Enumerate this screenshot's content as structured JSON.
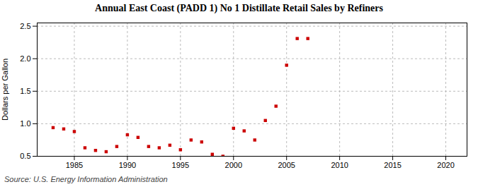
{
  "chart_data": {
    "type": "scatter",
    "title": "Annual East Coast (PADD 1) No 1 Distillate Retail Sales by Refiners",
    "ylabel": "Dollars per Gallon",
    "source": "Source: U.S. Energy Information Administration",
    "x": [
      1983,
      1984,
      1985,
      1986,
      1987,
      1988,
      1989,
      1990,
      1991,
      1992,
      1993,
      1994,
      1995,
      1996,
      1997,
      1998,
      1999,
      2000,
      2001,
      2002,
      2003,
      2004,
      2005,
      2006,
      2007
    ],
    "values": [
      0.94,
      0.92,
      0.88,
      0.63,
      0.59,
      0.57,
      0.65,
      0.83,
      0.79,
      0.65,
      0.63,
      0.67,
      0.6,
      0.75,
      0.72,
      0.53,
      0.5,
      0.93,
      0.89,
      0.75,
      1.05,
      1.27,
      1.9,
      2.31,
      2.31
    ],
    "color": "#cc0000",
    "marker": "square",
    "xlim": [
      1981.5,
      2022
    ],
    "xticks": [
      1985,
      1990,
      1995,
      2000,
      2005,
      2010,
      2015,
      2020
    ],
    "ylim": [
      0.5,
      2.55
    ],
    "yticks": [
      0.5,
      {
        "value": 1,
        "label": "1.0"
      },
      1.5,
      {
        "value": 2,
        "label": "2.0"
      },
      2.5
    ],
    "grid": true
  }
}
